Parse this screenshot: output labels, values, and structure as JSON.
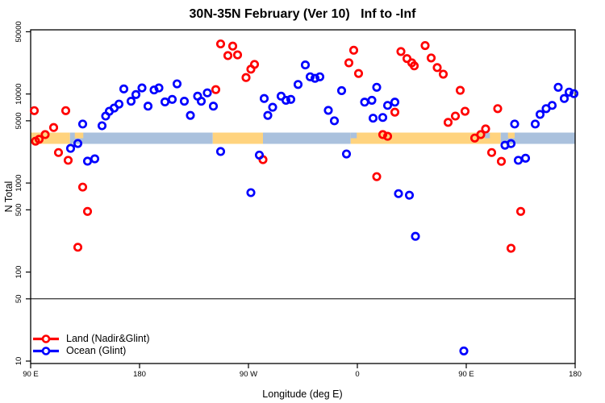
{
  "title": "30N-35N February (Ver 10)   Inf to -Inf",
  "chart_data": {
    "type": "scatter",
    "xlabel": "Longitude (deg E)",
    "ylabel": "N Total",
    "x_range": [
      90,
      540
    ],
    "y_range": [
      10,
      50000
    ],
    "y_scale": "log",
    "grid": false,
    "reference_line_y": 50,
    "x_ticks": [
      {
        "value": 90,
        "label": "90 E"
      },
      {
        "value": 180,
        "label": "180"
      },
      {
        "value": 270,
        "label": "90 W"
      },
      {
        "value": 360,
        "label": "0"
      },
      {
        "value": 450,
        "label": "90 E"
      },
      {
        "value": 540,
        "label": "180"
      }
    ],
    "y_ticks": [
      {
        "value": 10,
        "label": "10"
      },
      {
        "value": 50,
        "label": "50"
      },
      {
        "value": 100,
        "label": "100"
      },
      {
        "value": 500,
        "label": "500"
      },
      {
        "value": 1000,
        "label": "1000"
      },
      {
        "value": 5000,
        "label": "5000"
      },
      {
        "value": 10000,
        "label": "10000"
      },
      {
        "value": 50000,
        "label": "50000"
      }
    ],
    "legend": [
      {
        "label": "Land (Nadir&Glint)",
        "color": "#ff0000"
      },
      {
        "label": "Ocean (Glint)",
        "color": "#0000ff"
      }
    ],
    "legend_position": "bottom-left",
    "map_band": {
      "n_center": 3200,
      "segments": [
        {
          "from": 90,
          "to": 122.5,
          "type": "land"
        },
        {
          "from": 122.5,
          "to": 240.5,
          "type": "ocean"
        },
        {
          "from": 240.5,
          "to": 282,
          "type": "land"
        },
        {
          "from": 282,
          "to": 354.5,
          "type": "ocean"
        },
        {
          "from": 354.5,
          "to": 478.5,
          "type": "land"
        },
        {
          "from": 478.5,
          "to": 540,
          "type": "ocean"
        }
      ],
      "island_specks": [
        {
          "from": 126.5,
          "to": 133.5
        },
        {
          "from": 484.5,
          "to": 490
        }
      ],
      "inlet_specks": [
        {
          "from": 354.5,
          "to": 359.5
        },
        {
          "from": 465.5,
          "to": 469.5
        }
      ]
    },
    "series": [
      {
        "name": "Land (Nadir&Glint)",
        "color": "#ff0000",
        "points": [
          [
            93,
            6500
          ],
          [
            119,
            6500
          ],
          [
            109,
            4200
          ],
          [
            102,
            3500
          ],
          [
            97,
            3100
          ],
          [
            94,
            2950
          ],
          [
            113,
            2200
          ],
          [
            121,
            1800
          ],
          [
            133,
            900
          ],
          [
            137,
            480
          ],
          [
            129,
            190
          ],
          [
            243,
            11200
          ],
          [
            247,
            36500
          ],
          [
            257,
            34500
          ],
          [
            253,
            27000
          ],
          [
            261,
            27500
          ],
          [
            275,
            21500
          ],
          [
            272,
            19000
          ],
          [
            268,
            15300
          ],
          [
            282,
            1830
          ],
          [
            353,
            22400
          ],
          [
            357,
            31000
          ],
          [
            361,
            17000
          ],
          [
            376,
            1180
          ],
          [
            381,
            3500
          ],
          [
            385,
            3350
          ],
          [
            391,
            6250
          ],
          [
            396,
            30000
          ],
          [
            401,
            25000
          ],
          [
            405,
            22400
          ],
          [
            407,
            20700
          ],
          [
            416,
            35000
          ],
          [
            421,
            25400
          ],
          [
            426,
            19800
          ],
          [
            431,
            16700
          ],
          [
            435,
            4800
          ],
          [
            441,
            5650
          ],
          [
            449,
            6400
          ],
          [
            445,
            11000
          ],
          [
            457,
            3200
          ],
          [
            462,
            3500
          ],
          [
            466,
            4050
          ],
          [
            476,
            6850
          ],
          [
            471,
            2200
          ],
          [
            479,
            1750
          ],
          [
            487,
            185
          ],
          [
            495,
            480
          ]
        ]
      },
      {
        "name": "Ocean (Glint)",
        "color": "#0000ff",
        "points": [
          [
            123,
            2450
          ],
          [
            129,
            2780
          ],
          [
            137,
            1760
          ],
          [
            143,
            1870
          ],
          [
            133,
            4600
          ],
          [
            149,
            4400
          ],
          [
            152,
            5650
          ],
          [
            155,
            6400
          ],
          [
            159,
            6950
          ],
          [
            163,
            7700
          ],
          [
            167,
            11400
          ],
          [
            173,
            8300
          ],
          [
            177,
            9850
          ],
          [
            182,
            11700
          ],
          [
            187,
            7300
          ],
          [
            192,
            11100
          ],
          [
            196,
            11700
          ],
          [
            201,
            8150
          ],
          [
            207,
            8700
          ],
          [
            211,
            13000
          ],
          [
            217,
            8300
          ],
          [
            222,
            5750
          ],
          [
            228,
            9450
          ],
          [
            231,
            8300
          ],
          [
            236,
            10300
          ],
          [
            241,
            7300
          ],
          [
            247,
            2260
          ],
          [
            279,
            2060
          ],
          [
            272,
            780
          ],
          [
            283,
            8900
          ],
          [
            286,
            5750
          ],
          [
            290,
            7100
          ],
          [
            297,
            9450
          ],
          [
            301,
            8500
          ],
          [
            305,
            8700
          ],
          [
            311,
            12800
          ],
          [
            317,
            21200
          ],
          [
            321,
            15600
          ],
          [
            325,
            15000
          ],
          [
            329,
            15600
          ],
          [
            336,
            6550
          ],
          [
            341,
            5000
          ],
          [
            347,
            10900
          ],
          [
            351,
            2120
          ],
          [
            366,
            8100
          ],
          [
            372,
            8500
          ],
          [
            373,
            5350
          ],
          [
            381,
            5450
          ],
          [
            376,
            11900
          ],
          [
            385,
            7450
          ],
          [
            391,
            8100
          ],
          [
            394,
            760
          ],
          [
            403,
            730
          ],
          [
            408,
            252
          ],
          [
            448,
            13
          ],
          [
            482,
            2660
          ],
          [
            487,
            2770
          ],
          [
            490,
            4600
          ],
          [
            493,
            1800
          ],
          [
            499,
            1900
          ],
          [
            507,
            4600
          ],
          [
            511,
            5900
          ],
          [
            516,
            6850
          ],
          [
            521,
            7450
          ],
          [
            526,
            11900
          ],
          [
            531,
            8900
          ],
          [
            535,
            10500
          ],
          [
            539,
            10100
          ]
        ]
      }
    ]
  },
  "colors": {
    "land_point": "#ff0000",
    "ocean_point": "#0000ff",
    "band_land": "#ffd37e",
    "band_ocean": "#aac1dd",
    "frame": "#000000",
    "background": "#ffffff"
  }
}
